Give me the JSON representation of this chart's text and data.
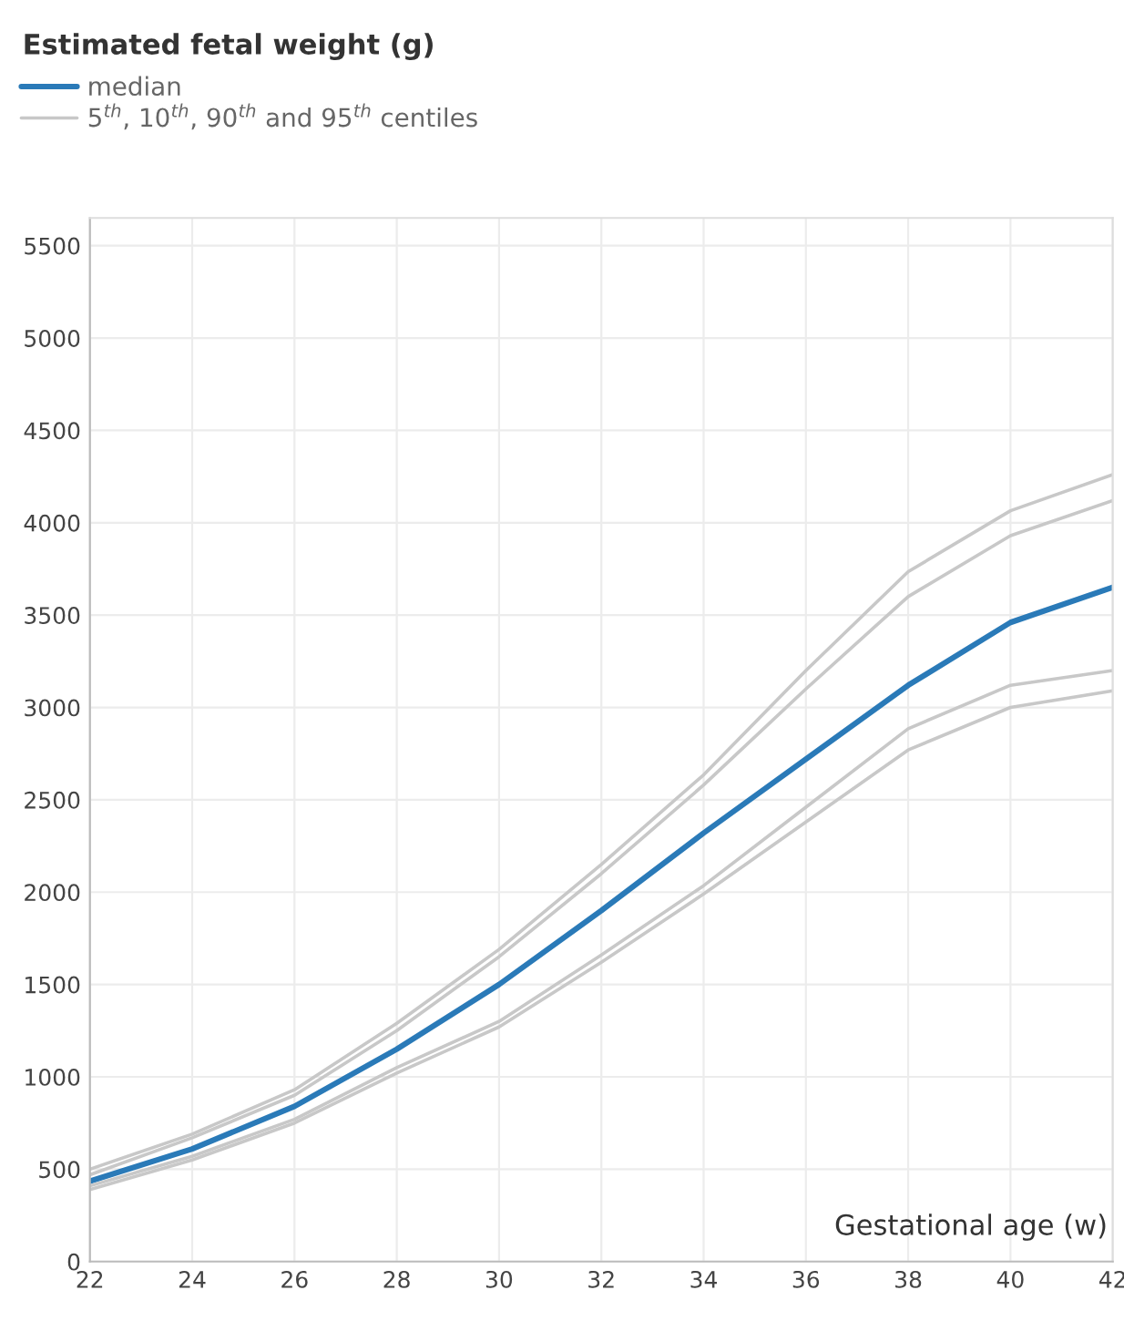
{
  "chart_data": {
    "type": "line",
    "title": "Estimated fetal weight (g)",
    "xlabel": "Gestational age (w)",
    "x": [
      22,
      24,
      26,
      28,
      30,
      32,
      34,
      36,
      38,
      40,
      42
    ],
    "series": [
      {
        "name": "median",
        "color": "#2a7ab8",
        "values": [
          435,
          610,
          840,
          1150,
          1500,
          1900,
          2320,
          2720,
          3120,
          3460,
          3650
        ]
      },
      {
        "name": "5$^{th}$, 10$^{th}$, 90$^{th}$ and 95$^{th}$ centiles",
        "color": "#c8c8c8",
        "values": [
          500,
          690,
          930,
          1290,
          1690,
          2150,
          2635,
          3200,
          3735,
          4065,
          4260
        ]
      },
      {
        "color": "#c8c8c8",
        "values": [
          470,
          670,
          900,
          1250,
          1650,
          2100,
          2580,
          3100,
          3600,
          3930,
          4120
        ]
      },
      {
        "color": "#c8c8c8",
        "values": [
          410,
          570,
          770,
          1050,
          1300,
          1660,
          2035,
          2460,
          2885,
          3120,
          3200
        ]
      },
      {
        "color": "#c8c8c8",
        "values": [
          390,
          550,
          750,
          1020,
          1270,
          1620,
          1990,
          2380,
          2770,
          3000,
          3090
        ]
      }
    ],
    "xlim": [
      22,
      42
    ],
    "ylim": [
      0,
      5650
    ],
    "xticks": [
      22,
      24,
      26,
      28,
      30,
      32,
      34,
      36,
      38,
      40,
      42
    ],
    "yticks": [
      0,
      500,
      1000,
      1500,
      2000,
      2500,
      3000,
      3500,
      4000,
      4500,
      5000,
      5500
    ],
    "grid": true,
    "legend": "top left",
    "marker": "none",
    "line_style": "solid"
  }
}
